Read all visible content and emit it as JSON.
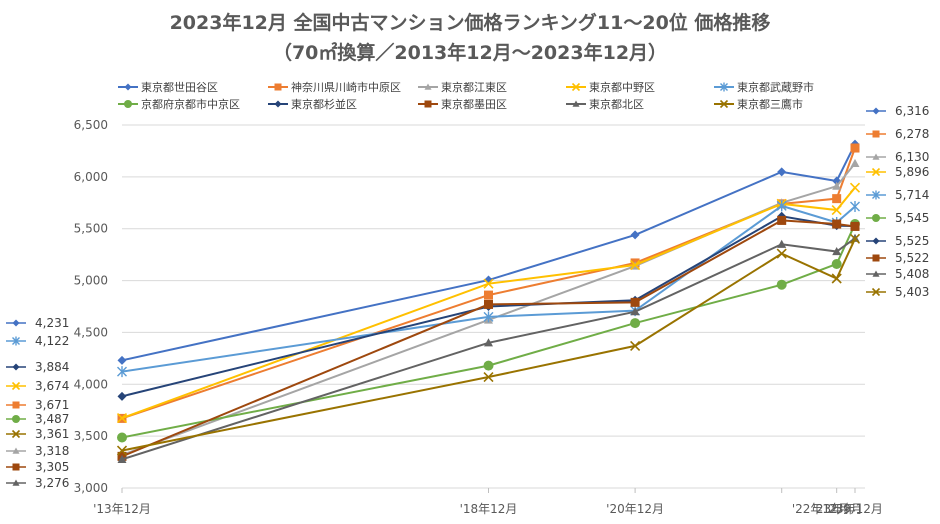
{
  "chart_data": {
    "type": "line",
    "title": "2023年12月 全国中古マンション価格ランキング11～20位 価格推移",
    "subtitle": "（70㎡換算／2013年12月～2023年12月）",
    "xlabel": "",
    "ylabel": "",
    "ylim": [
      3000,
      6500
    ],
    "yticks": [
      3000,
      3500,
      4000,
      4500,
      5000,
      5500,
      6000,
      6500
    ],
    "ytick_labels": [
      "3,000",
      "3,500",
      "4,000",
      "4,500",
      "5,000",
      "5,500",
      "6,000",
      "6,500"
    ],
    "categories": [
      "'13年12月",
      "'18年12月",
      "'20年12月",
      "'22年12月",
      "'23年9月",
      "'23年12月"
    ],
    "x_positions": [
      0,
      5,
      7,
      9,
      9.75,
      10
    ],
    "grid": true,
    "legend_position": "top",
    "series": [
      {
        "name": "東京都世田谷区",
        "color": "#4472C4",
        "marker": "diamond",
        "values": [
          4231,
          5005,
          5440,
          6048,
          5960,
          6316
        ],
        "start_label": "4,231",
        "end_label": "6,316"
      },
      {
        "name": "神奈川県川崎市中原区",
        "color": "#ED7D31",
        "marker": "square",
        "values": [
          3671,
          4860,
          5170,
          5740,
          5790,
          6278
        ],
        "start_label": "3,671",
        "end_label": "6,278"
      },
      {
        "name": "東京都江東区",
        "color": "#A5A5A5",
        "marker": "triangle",
        "values": [
          3318,
          4620,
          5140,
          5750,
          5910,
          6130
        ],
        "start_label": "3,318",
        "end_label": "6,130"
      },
      {
        "name": "東京都中野区",
        "color": "#FFC000",
        "marker": "x",
        "values": [
          3674,
          4970,
          5150,
          5740,
          5680,
          5896
        ],
        "start_label": "3,674",
        "end_label": "5,896"
      },
      {
        "name": "東京都武蔵野市",
        "color": "#5B9BD5",
        "marker": "star",
        "values": [
          4122,
          4650,
          4710,
          5720,
          5560,
          5714
        ],
        "start_label": "4,122",
        "end_label": "5,714"
      },
      {
        "name": "京都府京都市中京区",
        "color": "#70AD47",
        "marker": "circle",
        "values": [
          3487,
          4180,
          4590,
          4960,
          5160,
          5545
        ],
        "start_label": "3,487",
        "end_label": "5,545"
      },
      {
        "name": "東京都杉並区",
        "color": "#264478",
        "marker": "diamond",
        "values": [
          3884,
          4750,
          4810,
          5620,
          5530,
          5525
        ],
        "start_label": "3,884",
        "end_label": "5,525"
      },
      {
        "name": "東京都墨田区",
        "color": "#9E480E",
        "marker": "square",
        "values": [
          3305,
          4770,
          4790,
          5580,
          5545,
          5522
        ],
        "start_label": "3,305",
        "end_label": "5,522"
      },
      {
        "name": "東京都北区",
        "color": "#636363",
        "marker": "triangle",
        "values": [
          3276,
          4400,
          4700,
          5350,
          5280,
          5408
        ],
        "start_label": "3,276",
        "end_label": "5,408"
      },
      {
        "name": "東京都三鷹市",
        "color": "#997300",
        "marker": "x",
        "values": [
          3361,
          4070,
          4370,
          5260,
          5020,
          5403
        ],
        "start_label": "3,361",
        "end_label": "5,403"
      }
    ]
  }
}
